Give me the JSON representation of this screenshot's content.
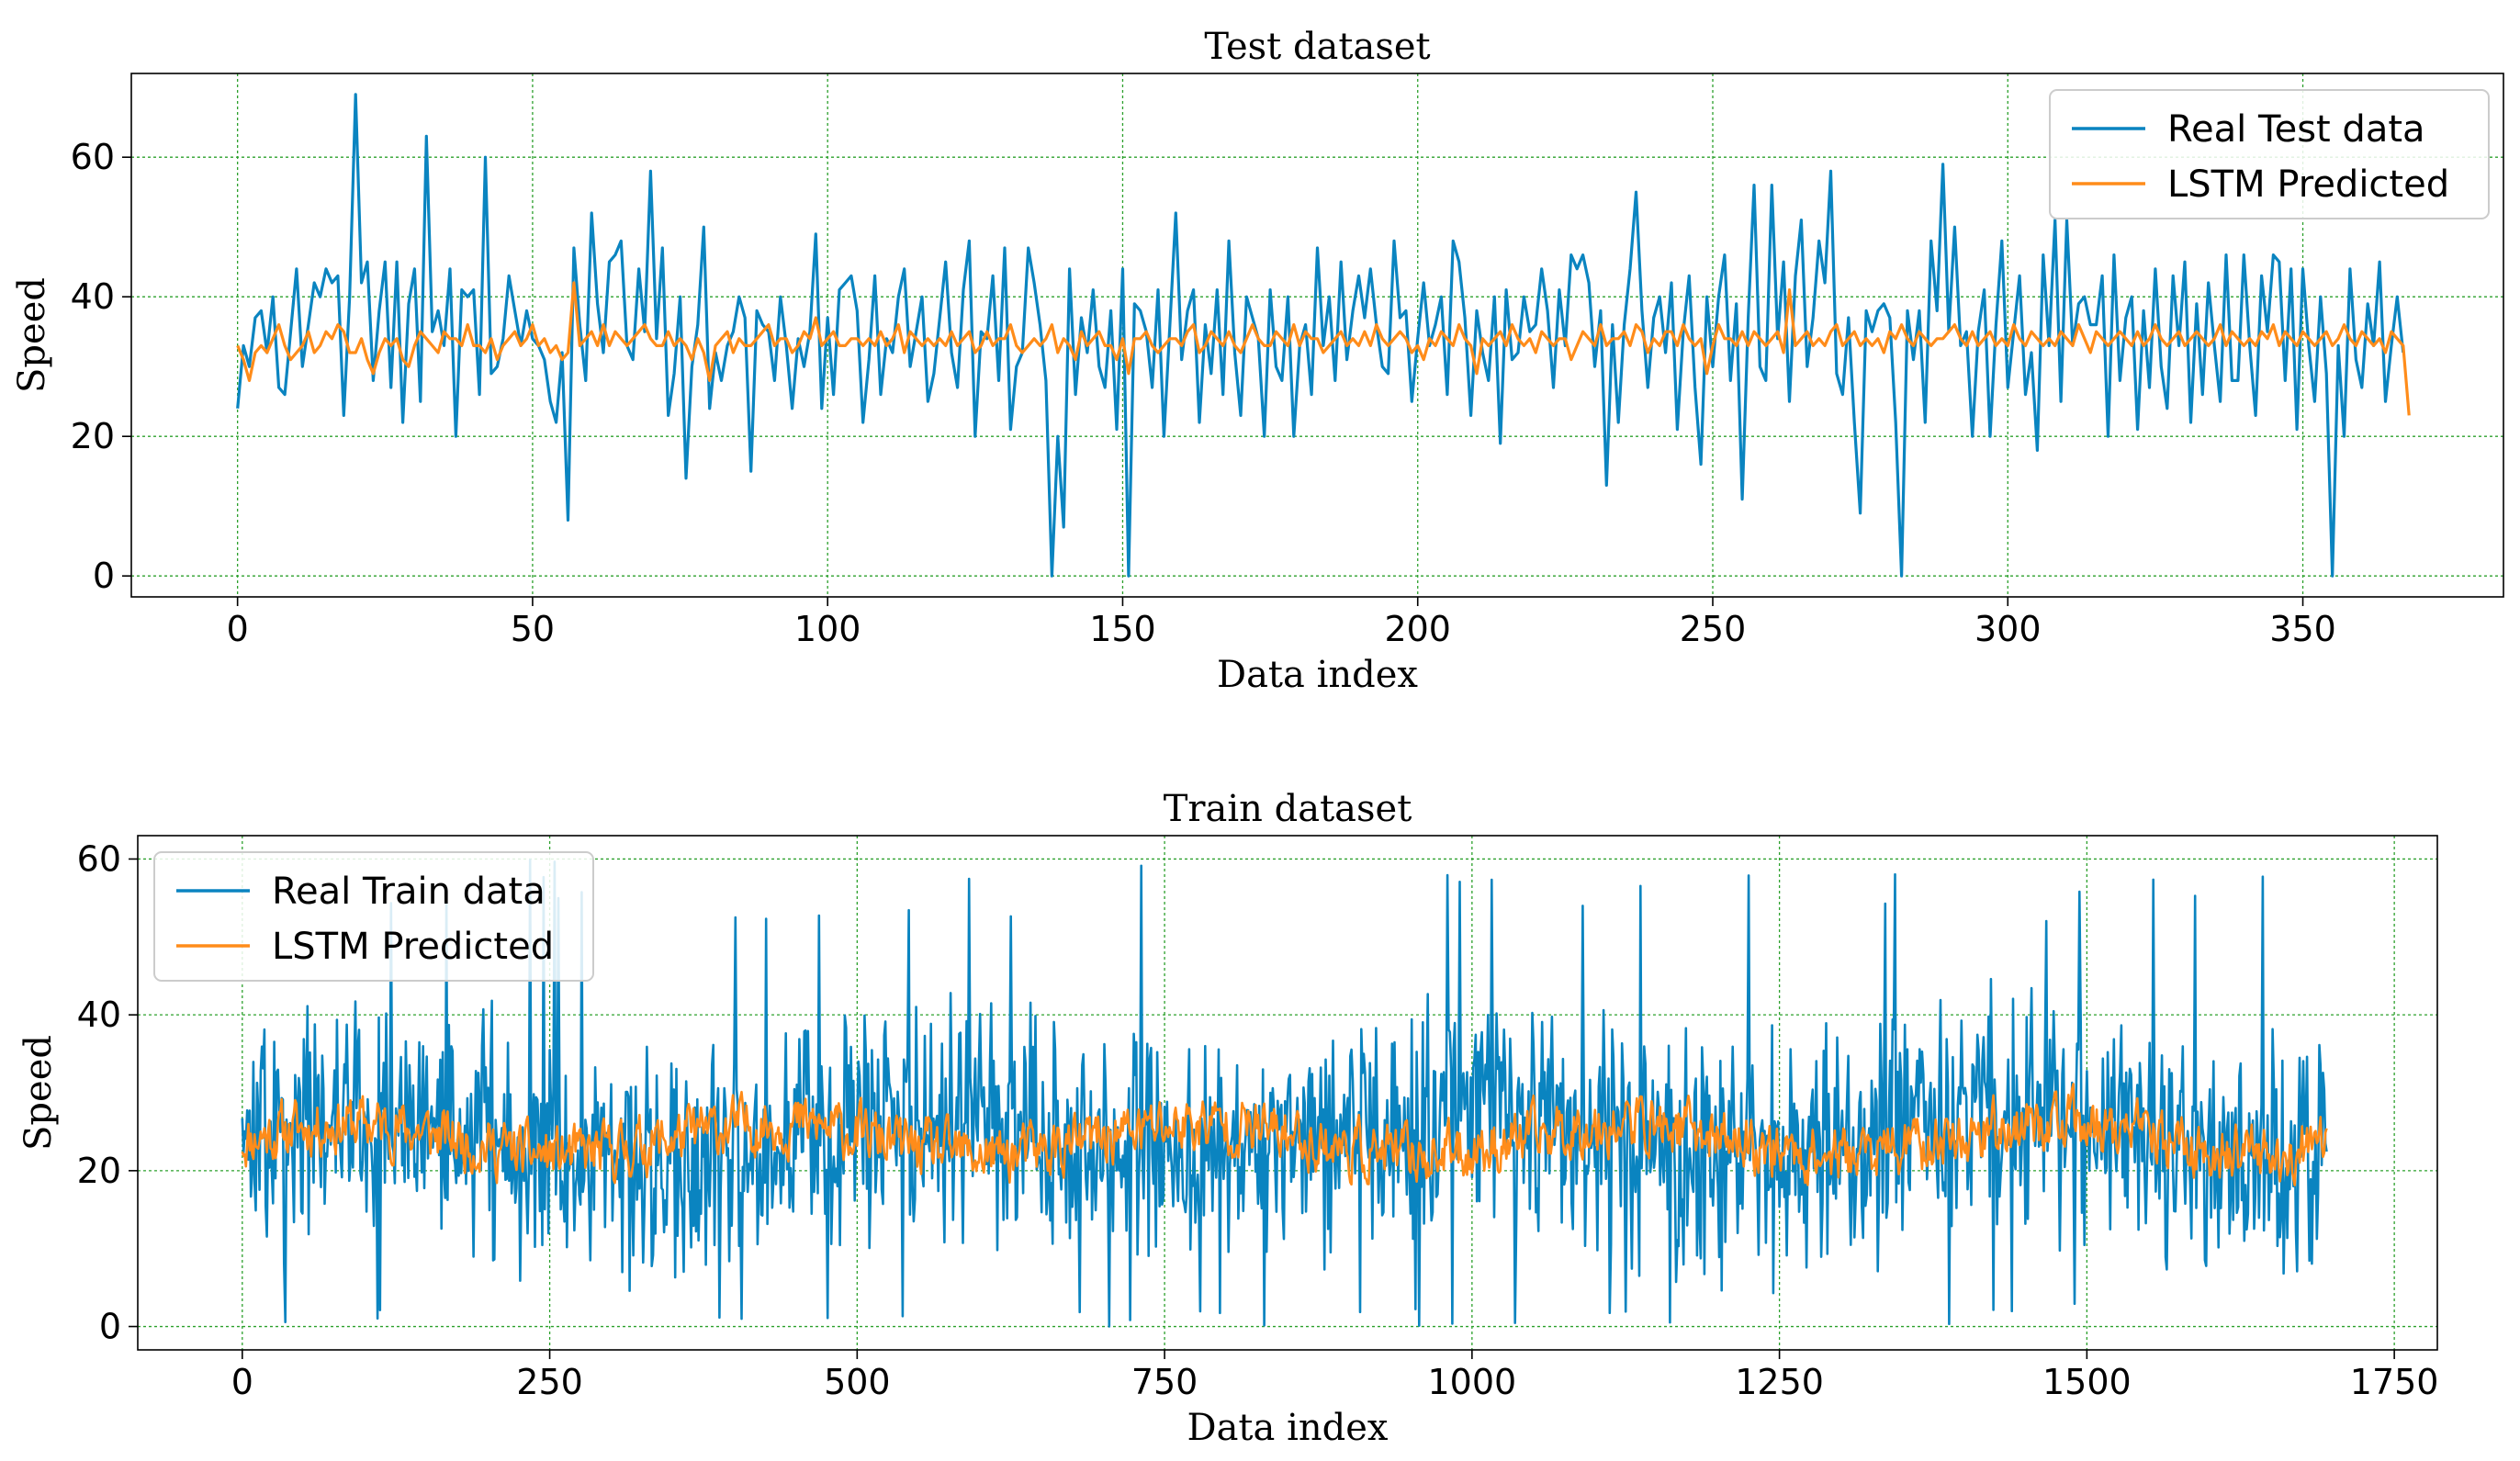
{
  "figure": {
    "colors": {
      "real": "#0a84c0",
      "pred": "#ff8c1a",
      "grid": "#2ca02c",
      "axis": "#000000"
    }
  },
  "chart_data": [
    {
      "type": "line",
      "title": "Test dataset",
      "xlabel": "Data index",
      "ylabel": "Speed",
      "xlim": [
        -18,
        384
      ],
      "ylim": [
        -3,
        72
      ],
      "xticks": [
        0,
        50,
        100,
        150,
        200,
        250,
        300,
        350
      ],
      "yticks": [
        0,
        20,
        40,
        60
      ],
      "grid": true,
      "legend_position": "top-right",
      "series": [
        {
          "name": "Real Test data",
          "color": "#0a84c0",
          "x_start": 0,
          "values": [
            24,
            33,
            30,
            37,
            38,
            32,
            40,
            27,
            26,
            35,
            44,
            30,
            36,
            42,
            40,
            44,
            42,
            43,
            23,
            40,
            69,
            42,
            45,
            28,
            38,
            45,
            27,
            45,
            22,
            39,
            44,
            25,
            63,
            35,
            38,
            33,
            44,
            20,
            41,
            40,
            41,
            26,
            60,
            29,
            30,
            34,
            43,
            38,
            33,
            38,
            34,
            33,
            31,
            25,
            22,
            32,
            8,
            47,
            36,
            28,
            52,
            39,
            32,
            45,
            46,
            48,
            33,
            31,
            44,
            35,
            58,
            34,
            47,
            23,
            29,
            40,
            14,
            30,
            36,
            50,
            24,
            32,
            28,
            33,
            35,
            40,
            37,
            15,
            38,
            36,
            35,
            28,
            40,
            33,
            24,
            34,
            30,
            35,
            49,
            24,
            37,
            26,
            41,
            42,
            43,
            38,
            22,
            31,
            43,
            26,
            34,
            32,
            40,
            44,
            30,
            35,
            40,
            25,
            29,
            37,
            45,
            32,
            27,
            41,
            48,
            20,
            35,
            34,
            43,
            28,
            47,
            21,
            30,
            32,
            47,
            42,
            36,
            28,
            0,
            20,
            7,
            44,
            26,
            37,
            32,
            41,
            30,
            27,
            38,
            21,
            44,
            0,
            39,
            38,
            35,
            27,
            41,
            20,
            36,
            52,
            31,
            38,
            41,
            22,
            36,
            29,
            41,
            26,
            48,
            32,
            23,
            40,
            37,
            34,
            20,
            41,
            30,
            28,
            40,
            20,
            33,
            36,
            26,
            47,
            33,
            40,
            28,
            45,
            31,
            38,
            43,
            37,
            44,
            36,
            30,
            29,
            48,
            37,
            38,
            25,
            34,
            42,
            33,
            36,
            40,
            26,
            48,
            45,
            37,
            23,
            38,
            32,
            28,
            40,
            19,
            41,
            31,
            32,
            40,
            35,
            36,
            44,
            38,
            27,
            41,
            33,
            46,
            44,
            46,
            42,
            30,
            38,
            13,
            36,
            22,
            36,
            44,
            55,
            38,
            27,
            37,
            40,
            32,
            42,
            21,
            35,
            43,
            27,
            16,
            40,
            30,
            40,
            46,
            28,
            39,
            11,
            37,
            56,
            30,
            28,
            56,
            34,
            45,
            25,
            43,
            51,
            30,
            37,
            48,
            42,
            58,
            29,
            26,
            37,
            22,
            9,
            38,
            35,
            38,
            39,
            37,
            22,
            0,
            38,
            31,
            38,
            22,
            48,
            38,
            59,
            35,
            50,
            33,
            35,
            20,
            35,
            41,
            20,
            36,
            48,
            27,
            35,
            43,
            26,
            32,
            18,
            46,
            33,
            51,
            25,
            51,
            33,
            39,
            40,
            36,
            36,
            43,
            20,
            46,
            28,
            37,
            40,
            21,
            38,
            27,
            44,
            30,
            24,
            43,
            33,
            45,
            22,
            39,
            26,
            42,
            33,
            25,
            46,
            28,
            28,
            46,
            33,
            23,
            43,
            35,
            46,
            45,
            28,
            44,
            21,
            44,
            33,
            25,
            40,
            29,
            0,
            33,
            20,
            44,
            31,
            27,
            39,
            33,
            45,
            25,
            33,
            40,
            32
          ]
        },
        {
          "name": "LSTM Predicted",
          "color": "#ff8c1a",
          "x_start": 0,
          "values": [
            33,
            31,
            28,
            32,
            33,
            32,
            34,
            36,
            33,
            31,
            32,
            33,
            35,
            32,
            33,
            35,
            34,
            36,
            35,
            32,
            32,
            34,
            31,
            29,
            32,
            34,
            33,
            34,
            31,
            30,
            33,
            35,
            34,
            33,
            32,
            35,
            34,
            34,
            33,
            36,
            33,
            33,
            32,
            34,
            31,
            33,
            34,
            35,
            33,
            34,
            36,
            33,
            34,
            32,
            33,
            31,
            32,
            42,
            33,
            34,
            35,
            33,
            36,
            33,
            35,
            34,
            33,
            34,
            35,
            36,
            34,
            33,
            33,
            35,
            33,
            34,
            33,
            31,
            34,
            32,
            28,
            33,
            34,
            35,
            32,
            34,
            33,
            33,
            34,
            35,
            36,
            33,
            34,
            34,
            32,
            33,
            35,
            34,
            37,
            33,
            34,
            35,
            33,
            33,
            34,
            34,
            33,
            34,
            33,
            35,
            33,
            34,
            36,
            32,
            35,
            34,
            33,
            34,
            33,
            34,
            33,
            35,
            33,
            34,
            35,
            32,
            33,
            35,
            33,
            34,
            34,
            36,
            33,
            32,
            33,
            34,
            33,
            34,
            36,
            32,
            34,
            33,
            31,
            35,
            33,
            34,
            35,
            33,
            33,
            31,
            34,
            29,
            34,
            34,
            35,
            33,
            32,
            33,
            34,
            34,
            33,
            35,
            36,
            32,
            33,
            35,
            34,
            33,
            35,
            33,
            32,
            34,
            36,
            34,
            33,
            33,
            35,
            34,
            33,
            36,
            33,
            35,
            34,
            34,
            32,
            33,
            34,
            35,
            33,
            34,
            33,
            35,
            33,
            36,
            34,
            33,
            34,
            35,
            34,
            32,
            33,
            31,
            34,
            33,
            35,
            34,
            33,
            36,
            34,
            33,
            29,
            34,
            33,
            34,
            35,
            33,
            36,
            34,
            33,
            34,
            32,
            35,
            34,
            33,
            34,
            34,
            31,
            33,
            35,
            34,
            33,
            36,
            33,
            34,
            34,
            35,
            33,
            36,
            35,
            32,
            34,
            33,
            35,
            35,
            33,
            36,
            34,
            33,
            34,
            29,
            33,
            36,
            34,
            34,
            33,
            35,
            33,
            35,
            34,
            33,
            34,
            35,
            32,
            41,
            33,
            34,
            35,
            33,
            34,
            33,
            35,
            36,
            33,
            34,
            35,
            33,
            34,
            33,
            34,
            32,
            35,
            34,
            36,
            34,
            33,
            35,
            34,
            33,
            34,
            34,
            35,
            36,
            34,
            33,
            35,
            33,
            34,
            35,
            33,
            34,
            33,
            36,
            34,
            33,
            35,
            34,
            33,
            34,
            33,
            35,
            34,
            33,
            36,
            34,
            32,
            35,
            34,
            33,
            34,
            35,
            34,
            33,
            35,
            33,
            34,
            36,
            34,
            33,
            34,
            35,
            33,
            34,
            35,
            34,
            33,
            34,
            36,
            33,
            35,
            34,
            33,
            34,
            33,
            35,
            34,
            36,
            33,
            35,
            34,
            33,
            35,
            34,
            33,
            34,
            35,
            33,
            34,
            36,
            34,
            33,
            35,
            34,
            33,
            34,
            32,
            35,
            34,
            33,
            23
          ]
        }
      ]
    },
    {
      "type": "line",
      "title": "Train dataset",
      "xlabel": "Data index",
      "ylabel": "Speed",
      "xlim": [
        -85,
        1785
      ],
      "ylim": [
        -3,
        63
      ],
      "xticks": [
        0,
        250,
        500,
        750,
        1000,
        1250,
        1500,
        1750
      ],
      "yticks": [
        0,
        20,
        40,
        60
      ],
      "grid": true,
      "legend_position": "top-left",
      "series": [
        {
          "name": "Real Train data",
          "color": "#0a84c0",
          "x_start": 0,
          "x_end": 1695,
          "generator": {
            "kind": "noisy",
            "seed": 7,
            "mean": 24,
            "spread": 18,
            "min": 0,
            "max": 60
          }
        },
        {
          "name": "LSTM Predicted",
          "color": "#ff8c1a",
          "x_start": 0,
          "x_end": 1695,
          "generator": {
            "kind": "smooth",
            "seed": 11,
            "mean": 24,
            "spread": 6,
            "min": 8,
            "max": 42
          }
        }
      ]
    }
  ]
}
